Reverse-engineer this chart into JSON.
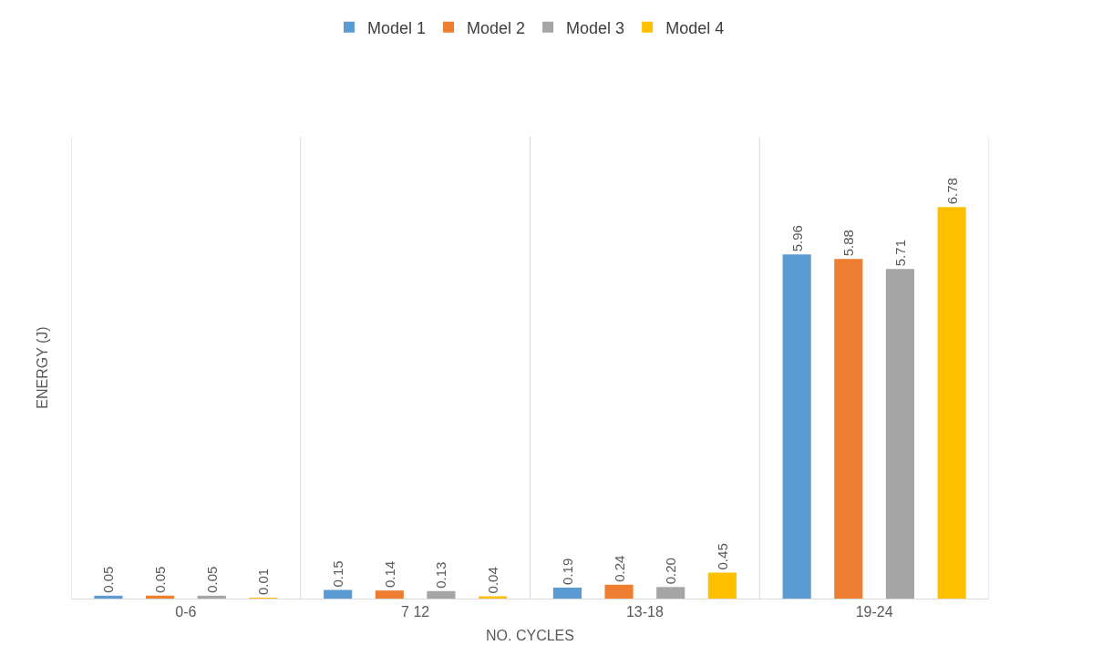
{
  "chart_data": {
    "type": "bar",
    "xlabel": "NO. CYCLES",
    "ylabel": "ENERGY (J)",
    "categories": [
      "0-6",
      "7 12",
      "13-18",
      "19-24"
    ],
    "series": [
      {
        "name": "Model 1",
        "color": "#5b9bd5",
        "values": [
          0.05,
          0.15,
          0.19,
          5.96
        ],
        "value_labels": [
          "0.05",
          "0.15",
          "0.19",
          "5.96"
        ]
      },
      {
        "name": "Model 2",
        "color": "#ed7d31",
        "values": [
          0.05,
          0.14,
          0.24,
          5.88
        ],
        "value_labels": [
          "0.05",
          "0.14",
          "0.24",
          "5.88"
        ]
      },
      {
        "name": "Model 3",
        "color": "#a5a5a5",
        "values": [
          0.05,
          0.13,
          0.2,
          5.71
        ],
        "value_labels": [
          "0.05",
          "0.13",
          "0.20",
          "5.71"
        ]
      },
      {
        "name": "Model 4",
        "color": "#ffc000",
        "values": [
          0.01,
          0.04,
          0.45,
          6.78
        ],
        "value_labels": [
          "0.01",
          "0.04",
          "0.45",
          "6.78"
        ]
      }
    ],
    "grid": "x",
    "legend": "top",
    "tick_labels": "x"
  }
}
